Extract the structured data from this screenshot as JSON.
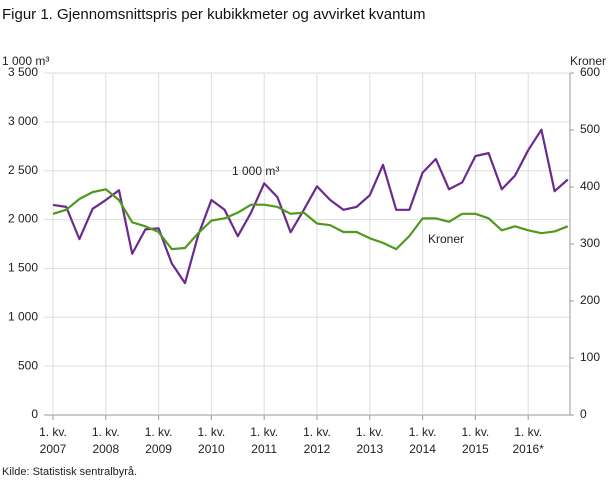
{
  "chart_data": {
    "type": "line",
    "title": "Figur 1. Gjennomsnittspris per kubikkmeter og avvirket kvantum",
    "source": "Kilde: Statistisk sentralbyrå.",
    "y_label": "1 000 m³",
    "y2_label": "Kroner",
    "categories": [
      "1. kv.\n2007",
      null,
      null,
      null,
      "1. kv.\n2008",
      null,
      null,
      null,
      "1. kv.\n2009",
      null,
      null,
      null,
      "1. kv.\n2010",
      null,
      null,
      null,
      "1. kv.\n2011",
      null,
      null,
      null,
      "1. kv.\n2012",
      null,
      null,
      null,
      "1. kv.\n2013",
      null,
      null,
      null,
      "1. kv.\n2014",
      null,
      null,
      null,
      "1. kv.\n2015",
      null,
      null,
      null,
      "1. kv.\n2016*",
      null,
      null,
      null
    ],
    "series": [
      {
        "name": "1 000 m³",
        "color": "#6a2a8e",
        "values": [
          2150,
          2130,
          1800,
          2110,
          2200,
          2300,
          1650,
          1900,
          1910,
          1550,
          1350,
          1840,
          2200,
          2100,
          1830,
          2070,
          2370,
          2230,
          1870,
          2100,
          2340,
          2200,
          2100,
          2130,
          2250,
          2560,
          2100,
          2100,
          2480,
          2620,
          2310,
          2380,
          2650,
          2680,
          2310,
          2450,
          2710,
          2920,
          2290,
          2410
        ]
      },
      {
        "name": "Kroner",
        "color": "#4f9a1e",
        "axis": "y2",
        "values": [
          353,
          360,
          379,
          391,
          396,
          377,
          338,
          331,
          321,
          291,
          293,
          319,
          341,
          345,
          355,
          369,
          369,
          365,
          353,
          355,
          336,
          333,
          321,
          321,
          310,
          302,
          291,
          314,
          345,
          345,
          339,
          353,
          353,
          345,
          324,
          331,
          324,
          319,
          322,
          331
        ]
      }
    ],
    "ylim": [
      0,
      3500
    ],
    "yticks": [
      0,
      500,
      {
        "value": 1000,
        "label": "1 000"
      },
      {
        "value": 1500,
        "label": "1 500"
      },
      {
        "value": 2000,
        "label": "2 000"
      },
      {
        "value": 2500,
        "label": "2 500"
      },
      {
        "value": 3000,
        "label": "3 000"
      },
      {
        "value": 3500,
        "label": "3 500"
      }
    ],
    "y2lim": [
      0,
      600
    ],
    "y2ticks": [
      0,
      100,
      200,
      300,
      400,
      500,
      600
    ],
    "grid": true
  }
}
